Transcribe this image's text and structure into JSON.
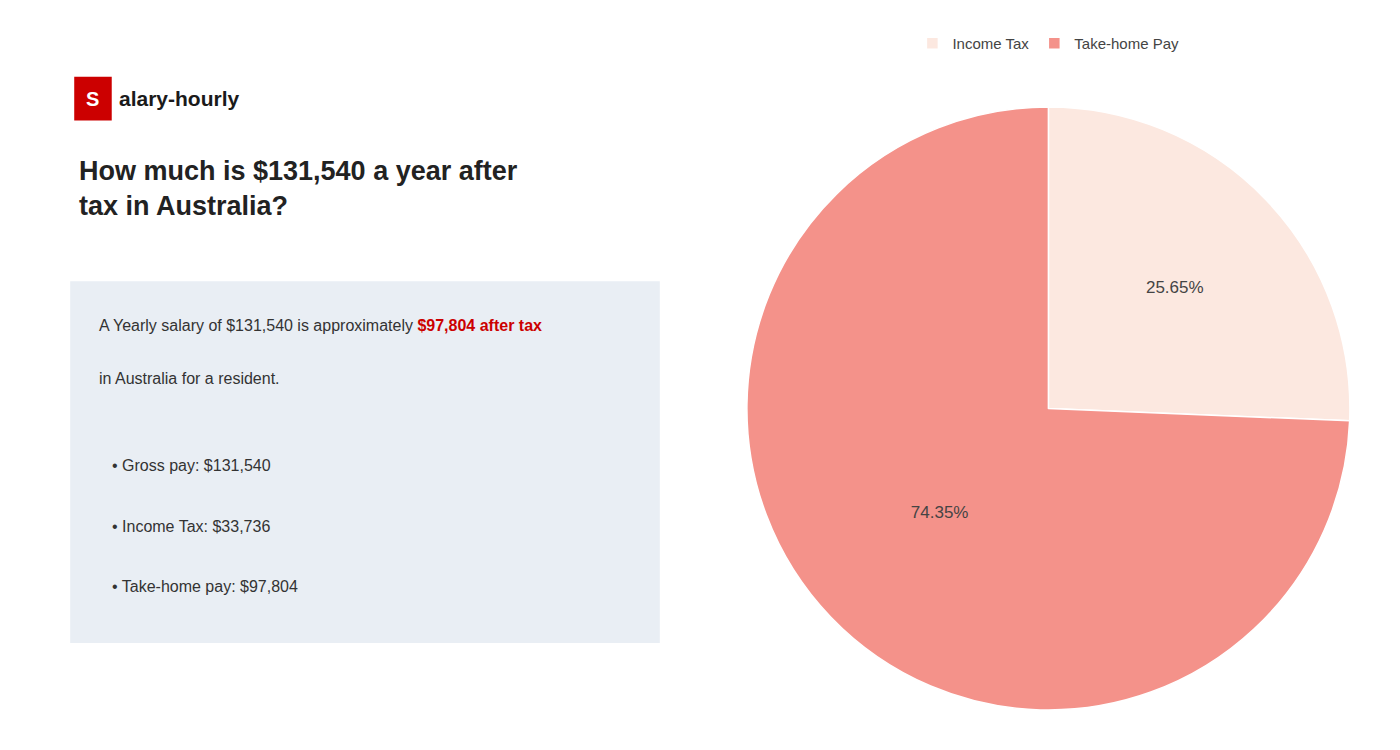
{
  "chart_data": {
    "type": "pie",
    "title": "How much is $131,540 a year after tax in Australia?",
    "categories": [
      "Income Tax",
      "Take-home Pay"
    ],
    "values": [
      25.65,
      74.35
    ],
    "value_labels": [
      "25.65%",
      "74.35%"
    ],
    "colors": [
      "#fce8e0",
      "#f4928a"
    ],
    "data_labels": true,
    "legend": "top",
    "annotations": [
      {
        "text": "S",
        "color": "#cc0000"
      },
      {
        "text": "alary-hourly"
      },
      {
        "text": "A Yearly salary of $131,540 is approximately "
      },
      {
        "text": "$97,804 after tax",
        "color": "#cc0000"
      },
      {
        "text": "in Australia for a resident."
      },
      {
        "text": "• Gross pay: $131,540"
      },
      {
        "text": "• Income Tax: $33,736"
      },
      {
        "text": "• Take-home pay: $97,804"
      }
    ]
  }
}
